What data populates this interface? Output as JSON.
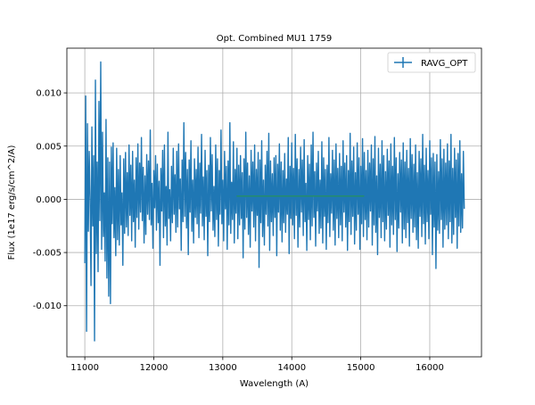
{
  "chart_data": {
    "type": "line",
    "title": "Opt. Combined MU1 1759",
    "xlabel": "Wavelength (A)",
    "ylabel": "Flux (1e17 erg/s/cm^2/A)",
    "xlim": [
      10740,
      16750
    ],
    "ylim": [
      -0.0148,
      0.0142
    ],
    "x_ticks": [
      11000,
      12000,
      13000,
      14000,
      15000,
      16000
    ],
    "y_ticks": [
      -0.01,
      -0.005,
      0.0,
      0.005,
      0.01
    ],
    "x_tick_labels": [
      "11000",
      "12000",
      "13000",
      "14000",
      "15000",
      "16000"
    ],
    "y_tick_labels": [
      "-0.010",
      "-0.005",
      "0.000",
      "0.005",
      "0.010"
    ],
    "grid": true,
    "legend_position": "top-right",
    "series": [
      {
        "name": "RAVG_OPT",
        "color": "#1f77b4",
        "x_start": 11000,
        "x_end": 16500,
        "values": [
          -0.006,
          0.0097,
          -0.0124,
          0.0071,
          -0.003,
          0.0045,
          0.0001,
          -0.0081,
          0.0068,
          -0.0025,
          0.0041,
          -0.0133,
          0.0112,
          -0.0051,
          0.0035,
          -0.0068,
          0.0092,
          -0.002,
          0.0129,
          -0.0047,
          0.0063,
          -0.0035,
          0.0006,
          -0.0058,
          0.0075,
          -0.0074,
          0.0039,
          -0.0091,
          0.0035,
          -0.0098,
          0.0049,
          -0.0023,
          0.0053,
          -0.0036,
          0.0011,
          -0.0053,
          0.0048,
          -0.0038,
          0.0028,
          -0.0043,
          0.0041,
          -0.0024,
          0.0006,
          -0.0062,
          0.0038,
          -0.0032,
          0.0044,
          -0.0026,
          0.0025,
          -0.0034,
          0.0051,
          -0.0015,
          0.0032,
          -0.0039,
          0.0045,
          -0.0021,
          0.0018,
          -0.0045,
          0.0039,
          -0.0017,
          0.0052,
          -0.0028,
          0.0034,
          -0.0012,
          0.0058,
          -0.002,
          0.003,
          -0.0041,
          0.0022,
          -0.0033,
          0.0042,
          -0.0014,
          0.0036,
          -0.0019,
          0.0065,
          -0.0024,
          0.0015,
          -0.0046,
          0.0027,
          -0.0008,
          0.0041,
          -0.0029,
          0.0033,
          -0.0022,
          0.0017,
          -0.0062,
          0.0029,
          -0.0011,
          0.0046,
          -0.0036,
          0.0051,
          -0.0025,
          0.0012,
          -0.0043,
          0.0063,
          -0.0018,
          0.0009,
          -0.0039,
          0.0031,
          -0.0022,
          0.0048,
          -0.0014,
          0.0023,
          -0.0031,
          0.0045,
          -0.0026,
          0.0052,
          -0.0009,
          0.0019,
          -0.0048,
          0.0037,
          -0.0021,
          0.0072,
          -0.0016,
          0.0044,
          -0.0027,
          0.0028,
          -0.0052,
          0.0037,
          -0.0012,
          0.0055,
          -0.003,
          0.0018,
          -0.0041,
          0.0038,
          -0.0017,
          0.0028,
          -0.0023,
          0.0049,
          -0.0036,
          0.0034,
          -0.0013,
          0.0061,
          -0.0025,
          0.0021,
          -0.0038,
          0.0046,
          -0.0016,
          0.0027,
          -0.0053,
          0.0032,
          -0.0021,
          0.0058,
          -0.0011,
          0.0042,
          -0.0029,
          0.0012,
          -0.0035,
          0.0051,
          -0.0019,
          0.0038,
          -0.0044,
          0.0027,
          -0.0014,
          0.0065,
          -0.0023,
          0.0018,
          -0.0039,
          0.0045,
          -0.0009,
          0.0031,
          -0.0047,
          0.0036,
          -0.0024,
          0.0072,
          -0.0032,
          0.0016,
          -0.0019,
          0.0054,
          -0.0041,
          0.0028,
          -0.0013,
          0.0048,
          -0.0037,
          0.0032,
          -0.0024,
          0.0041,
          -0.0018,
          0.0025,
          -0.0055,
          0.0038,
          -0.0028,
          0.0063,
          -0.0017,
          0.0034,
          -0.0033,
          0.0022,
          -0.0045,
          0.0046,
          -0.0011,
          0.0035,
          -0.0026,
          0.0051,
          -0.0039,
          0.0028,
          -0.0015,
          0.0044,
          -0.0064,
          0.0037,
          -0.0022,
          0.0055,
          -0.0035,
          0.0018,
          -0.0043,
          0.0032,
          -0.0014,
          0.0045,
          -0.0025,
          0.0062,
          -0.0048,
          0.0036,
          -0.0021,
          0.0024,
          -0.0034,
          0.0039,
          -0.0017,
          0.0041,
          -0.0053,
          0.0033,
          -0.0012,
          0.0052,
          -0.0029,
          0.0035,
          -0.004,
          0.0027,
          -0.0022,
          0.0043,
          -0.0031,
          0.0019,
          -0.0014,
          0.0058,
          -0.0051,
          0.0031,
          -0.0018,
          0.0053,
          -0.0024,
          0.0029,
          -0.0037,
          0.0061,
          -0.0015,
          0.0038,
          -0.0045,
          0.0028,
          -0.0026,
          0.0049,
          -0.0012,
          0.0037,
          -0.0034,
          0.0056,
          -0.0021,
          0.0015,
          -0.0048,
          0.0041,
          -0.0019,
          0.0033,
          -0.0038,
          0.0051,
          -0.0025,
          0.0063,
          -0.0017,
          0.0026,
          -0.0044,
          0.0034,
          -0.0011,
          0.0045,
          -0.0032,
          0.0018,
          -0.0027,
          0.0054,
          -0.0041,
          0.0039,
          -0.0016,
          0.0028,
          -0.0047,
          0.0032,
          -0.0022,
          0.0058,
          -0.0035,
          0.0024,
          -0.0013,
          0.0046,
          -0.0029,
          0.0037,
          -0.0043,
          0.0052,
          -0.0018,
          0.0029,
          -0.0036,
          0.0043,
          -0.0024,
          0.0031,
          -0.0039,
          0.0055,
          -0.0012,
          0.0034,
          -0.0026,
          0.0041,
          -0.0048,
          0.0027,
          -0.0021,
          0.0062,
          -0.0033,
          0.0036,
          -0.0016,
          0.0049,
          -0.0042,
          0.0025,
          -0.0029,
          0.0053,
          -0.0014,
          0.0039,
          -0.0047,
          0.0031,
          -0.0023,
          0.0057,
          -0.0035,
          0.0044,
          -0.0019,
          0.0027,
          -0.0038,
          0.0046,
          -0.0026,
          0.0034,
          -0.0011,
          0.0051,
          -0.0043,
          0.0038,
          -0.0024,
          0.0059,
          -0.0031,
          0.0022,
          -0.0052,
          0.0048,
          -0.0017,
          0.0033,
          -0.0036,
          0.0055,
          -0.0021,
          0.0041,
          -0.0039,
          0.0026,
          -0.0028,
          0.0047,
          -0.0015,
          0.0036,
          -0.0045,
          0.0052,
          -0.0024,
          0.0031,
          -0.0033,
          0.0058,
          -0.0019,
          0.0039,
          -0.0049,
          0.0024,
          -0.0027,
          0.0044,
          -0.0012,
          0.0037,
          -0.0041,
          0.0053,
          -0.0028,
          0.0035,
          -0.0036,
          0.0046,
          -0.0022,
          0.0029,
          -0.0044,
          0.0057,
          -0.0018,
          0.0042,
          -0.0031,
          0.0033,
          -0.0026,
          0.0051,
          -0.0038,
          0.0025,
          -0.0046,
          0.0045,
          -0.0016,
          0.0038,
          -0.0035,
          0.0061,
          -0.0023,
          0.0032,
          -0.0042,
          0.0048,
          -0.0021,
          0.0027,
          -0.0037,
          0.0055,
          -0.0014,
          0.0039,
          -0.0052,
          0.0043,
          -0.0026,
          0.0035,
          -0.0065,
          0.0042,
          -0.0029,
          0.0026,
          -0.0032,
          0.0056,
          -0.0019,
          0.0038,
          -0.0045,
          0.0047,
          -0.0028,
          0.0034,
          -0.0024,
          0.0052,
          -0.0037,
          0.0036,
          -0.0021,
          0.0061,
          -0.0041,
          0.0029,
          -0.0033,
          0.0048,
          -0.0017,
          0.0037,
          -0.0046,
          0.0043,
          -0.0025,
          0.0055,
          -0.0031,
          0.0024,
          -0.0027,
          0.0045,
          -0.0009
        ]
      },
      {
        "color": "#2ca02c",
        "x": [
          13200,
          15050
        ],
        "y": [
          0.0003,
          0.0003
        ]
      }
    ]
  }
}
